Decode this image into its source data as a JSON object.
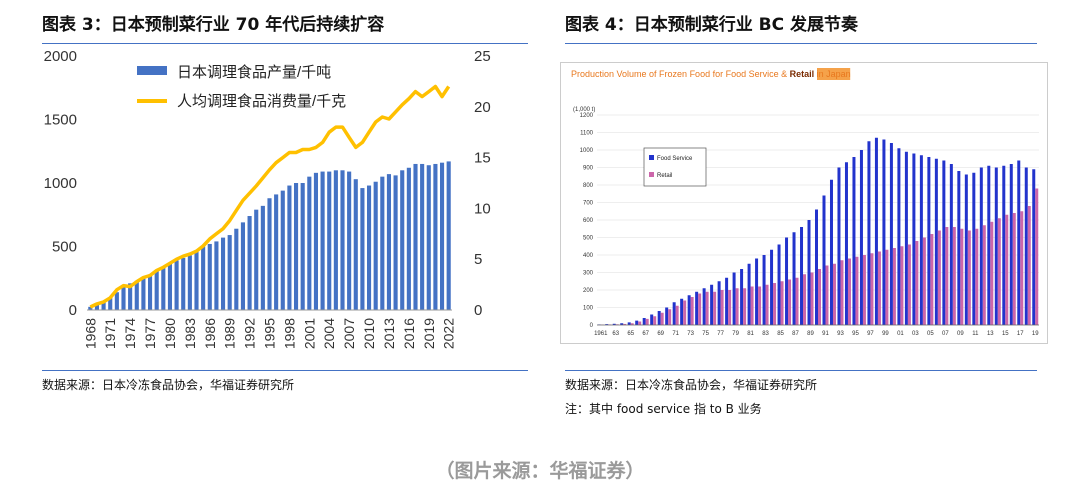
{
  "left_panel": {
    "title": "图表 3：日本预制菜行业 70 年代后持续扩容",
    "source": "数据来源：日本冷冻食品协会，华福证券研究所"
  },
  "right_panel": {
    "title": "图表 4：日本预制菜行业 BC 发展节奏",
    "source": "数据来源：日本冷冻食品协会，华福证券研究所",
    "note": "注：其中 food service 指 to B 业务"
  },
  "caption": "（图片来源：华福证券）",
  "colors": {
    "bar_blue": "#4472c4",
    "line_gold": "#ffc000",
    "fs_blue": "#2233cc",
    "retail_pink": "#cc66aa",
    "title_orange": "#e8781e"
  },
  "chart_data": [
    {
      "type": "bar",
      "title": "",
      "legend_placement": "top-left",
      "xlabel": "",
      "ylabel": "",
      "x": [
        1968,
        1969,
        1970,
        1971,
        1972,
        1973,
        1974,
        1975,
        1976,
        1977,
        1978,
        1979,
        1980,
        1981,
        1982,
        1983,
        1984,
        1985,
        1986,
        1987,
        1988,
        1989,
        1990,
        1991,
        1992,
        1993,
        1994,
        1995,
        1996,
        1997,
        1998,
        1999,
        2000,
        2001,
        2002,
        2003,
        2004,
        2005,
        2006,
        2007,
        2008,
        2009,
        2010,
        2011,
        2012,
        2013,
        2014,
        2015,
        2016,
        2017,
        2018,
        2019,
        2020,
        2021,
        2022
      ],
      "x_tick_labels": [
        "1968",
        "1971",
        "1974",
        "1977",
        "1980",
        "1983",
        "1986",
        "1989",
        "1992",
        "1995",
        "1998",
        "2001",
        "2004",
        "2007",
        "2010",
        "2013",
        "2016",
        "2019",
        "2022"
      ],
      "ylim_left": [
        0,
        2000
      ],
      "y_ticks_left": [
        0,
        500,
        1000,
        1500,
        2000
      ],
      "ylim_right": [
        0,
        25
      ],
      "y_ticks_right": [
        0,
        5,
        10,
        15,
        20,
        25
      ],
      "grid": false,
      "series": [
        {
          "name": "日本调理食品产量/千吨",
          "type": "bar",
          "axis": "left",
          "values": [
            25,
            40,
            60,
            100,
            140,
            180,
            210,
            230,
            260,
            280,
            310,
            340,
            370,
            390,
            410,
            430,
            460,
            500,
            520,
            540,
            570,
            590,
            640,
            690,
            740,
            790,
            820,
            880,
            910,
            940,
            980,
            1000,
            1000,
            1050,
            1080,
            1090,
            1090,
            1100,
            1100,
            1090,
            1030,
            960,
            980,
            1010,
            1050,
            1070,
            1060,
            1100,
            1120,
            1150,
            1150,
            1140,
            1150,
            1160,
            1170
          ]
        },
        {
          "name": "人均调理食品消费量/千克",
          "type": "line",
          "axis": "right",
          "values": [
            0.3,
            0.6,
            0.8,
            1.2,
            2.0,
            2.4,
            2.3,
            2.8,
            3.2,
            3.4,
            3.9,
            4.2,
            4.6,
            5.0,
            5.3,
            5.5,
            5.8,
            6.3,
            7.0,
            7.5,
            8.0,
            8.8,
            9.8,
            10.8,
            11.5,
            12.2,
            13.0,
            13.8,
            14.5,
            15.0,
            15.5,
            15.5,
            15.8,
            15.8,
            16.0,
            16.5,
            17.5,
            18.0,
            18.0,
            17.0,
            16.0,
            16.5,
            17.5,
            18.5,
            19.0,
            18.8,
            19.5,
            20.2,
            20.8,
            21.5,
            21.0,
            21.5,
            22.0,
            21.0,
            22.0
          ]
        }
      ]
    },
    {
      "type": "bar",
      "title": "Production Volume of Frozen Food for Food Service & Retail in Japan",
      "title_highlight": "Retail",
      "y_unit": "(1,000 t)",
      "legend_placement": "top-left",
      "ylim": [
        0,
        1200
      ],
      "y_ticks": [
        0,
        100,
        200,
        300,
        400,
        500,
        600,
        700,
        800,
        900,
        1000,
        1100,
        1200
      ],
      "grid": true,
      "x": [
        1961,
        1962,
        1963,
        1964,
        1965,
        1966,
        1967,
        1968,
        1969,
        1970,
        1971,
        1972,
        1973,
        1974,
        1975,
        1976,
        1977,
        1978,
        1979,
        1980,
        1981,
        1982,
        1983,
        1984,
        1985,
        1986,
        1987,
        1988,
        1989,
        1990,
        1991,
        1992,
        1993,
        1994,
        1995,
        1996,
        1997,
        1998,
        1999,
        2000,
        2001,
        2002,
        2003,
        2004,
        2005,
        2006,
        2007,
        2008,
        2009,
        2010,
        2011,
        2012,
        2013,
        2014,
        2015,
        2016,
        2017,
        2018,
        2019
      ],
      "x_tick_labels": [
        "1961",
        "63",
        "65",
        "67",
        "69",
        "71",
        "73",
        "75",
        "77",
        "79",
        "81",
        "83",
        "85",
        "87",
        "89",
        "91",
        "93",
        "95",
        "97",
        "99",
        "01",
        "03",
        "05",
        "07",
        "09",
        "11",
        "13",
        "15",
        "17",
        "19"
      ],
      "series": [
        {
          "name": "Food Service",
          "values": [
            3,
            5,
            7,
            10,
            15,
            25,
            40,
            60,
            80,
            100,
            130,
            150,
            170,
            190,
            210,
            230,
            250,
            270,
            300,
            320,
            350,
            380,
            400,
            430,
            460,
            500,
            530,
            560,
            600,
            660,
            740,
            830,
            900,
            930,
            960,
            1000,
            1050,
            1070,
            1060,
            1040,
            1010,
            990,
            980,
            970,
            960,
            950,
            940,
            920,
            880,
            860,
            870,
            900,
            910,
            900,
            910,
            920,
            940,
            900,
            890
          ]
        },
        {
          "name": "Retail",
          "values": [
            2,
            3,
            4,
            6,
            10,
            20,
            35,
            50,
            70,
            90,
            110,
            140,
            160,
            180,
            190,
            190,
            200,
            200,
            210,
            210,
            220,
            220,
            230,
            240,
            250,
            260,
            270,
            290,
            300,
            320,
            340,
            350,
            370,
            380,
            390,
            400,
            410,
            420,
            430,
            440,
            450,
            460,
            480,
            500,
            520,
            540,
            560,
            560,
            550,
            540,
            550,
            570,
            590,
            610,
            630,
            640,
            650,
            680,
            780
          ]
        }
      ]
    }
  ]
}
